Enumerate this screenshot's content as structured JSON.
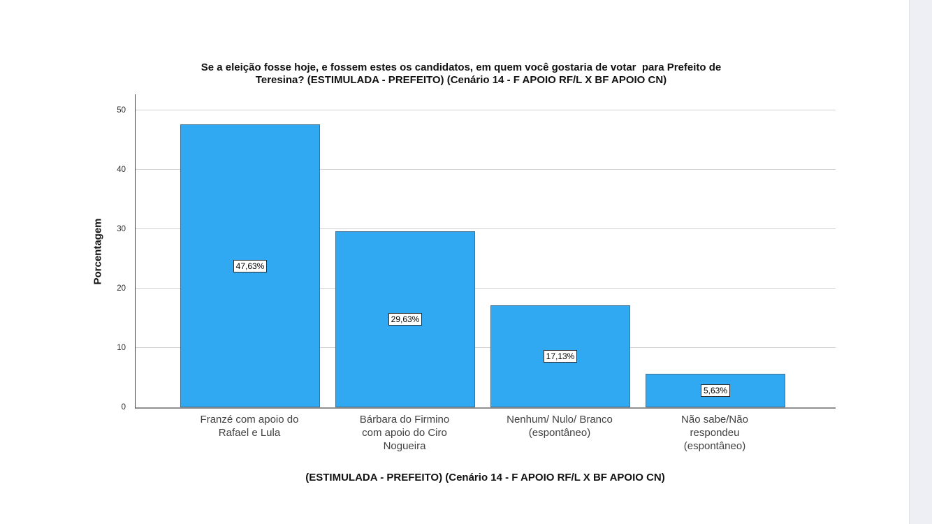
{
  "page": {
    "background": "#ffffff",
    "scrollbar_color": "#edeff4"
  },
  "chart": {
    "title_line1": "Se a eleição fosse hoje, e fossem estes os candidatos, em quem você gostaria de votar  para Prefeito de",
    "title_line2": "Teresina? (ESTIMULADA - PREFEITO) (Cenário 14 - F APOIO RF/L X BF APOIO CN)"
  },
  "chart_data": {
    "type": "bar",
    "title": "Se a eleição fosse hoje, e fossem estes os candidatos, em quem você gostaria de votar para Prefeito de Teresina? (ESTIMULADA - PREFEITO) (Cenário 14 - F APOIO RF/L X BF APOIO CN)",
    "categories": [
      "Franzé com apoio do Rafael e Lula",
      "Bárbara do Firmino com apoio do Ciro Nogueira",
      "Nenhum/ Nulo/ Branco (espontâneo)",
      "Não sabe/Não respondeu (espontâneo)"
    ],
    "categories_display": [
      "Franzé com apoio do\nRafael e Lula",
      "Bárbara do Firmino\ncom apoio do Ciro\nNogueira",
      "Nenhum/ Nulo/ Branco\n(espontâneo)",
      "Não sabe/Não\nrespondeu\n(espontâneo)"
    ],
    "values": [
      47.63,
      29.63,
      17.13,
      5.63
    ],
    "value_labels": [
      "47,63%",
      "29,63%",
      "17,13%",
      "5,63%"
    ],
    "ylabel": "Porcentagem",
    "xlabel": "(ESTIMULADA - PREFEITO) (Cenário 14 - F APOIO RF/L X BF APOIO CN)",
    "ylim": [
      0,
      52.7
    ],
    "yticks": [
      0,
      10,
      20,
      30,
      40,
      50
    ],
    "grid": true,
    "legend": "none",
    "bar_color": "#31a8f2",
    "bar_border_color": "#44708e",
    "gridline_color": "#d0d0d0",
    "axis_color": "#8f8f8f"
  }
}
